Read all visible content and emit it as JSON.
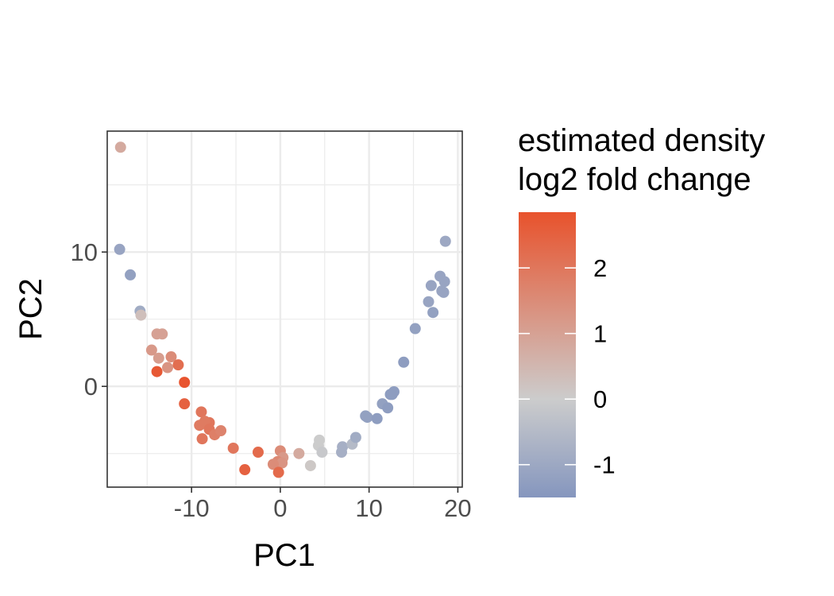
{
  "chart_data": {
    "type": "scatter",
    "xlabel": "PC1",
    "ylabel": "PC2",
    "xlim": [
      -19.5,
      20.5
    ],
    "ylim": [
      -7.5,
      19
    ],
    "xticks": [
      -10,
      0,
      10,
      20
    ],
    "xtick_labels": [
      "-10",
      "0",
      "10",
      "20"
    ],
    "yticks": [
      0,
      10
    ],
    "ytick_labels": [
      "0",
      "10"
    ],
    "grid": true,
    "legend": {
      "title_lines": [
        "estimated density",
        "log2 fold change"
      ],
      "type": "colorbar",
      "placement": "right",
      "range": [
        -1.5,
        2.85
      ],
      "ticks": [
        -1,
        0,
        1,
        2
      ],
      "tick_labels": [
        "-1",
        "0",
        "1",
        "2"
      ],
      "colors": {
        "low": "#8596be",
        "mid": "#cccccc",
        "high": "#e8522c"
      }
    },
    "points": [
      {
        "x": -18.0,
        "y": 17.8,
        "value": 0.8
      },
      {
        "x": -18.1,
        "y": 10.2,
        "value": -1.1
      },
      {
        "x": -16.9,
        "y": 8.3,
        "value": -1.2
      },
      {
        "x": -15.8,
        "y": 5.6,
        "value": -0.9
      },
      {
        "x": -15.7,
        "y": 5.3,
        "value": 0.3
      },
      {
        "x": -13.9,
        "y": 3.9,
        "value": 1.0
      },
      {
        "x": -13.3,
        "y": 3.9,
        "value": 1.0
      },
      {
        "x": -14.5,
        "y": 2.7,
        "value": 1.2
      },
      {
        "x": -13.7,
        "y": 2.1,
        "value": 1.1
      },
      {
        "x": -12.3,
        "y": 2.2,
        "value": 1.5
      },
      {
        "x": -12.7,
        "y": 1.4,
        "value": 1.3
      },
      {
        "x": -11.5,
        "y": 1.6,
        "value": 2.2
      },
      {
        "x": -13.9,
        "y": 1.1,
        "value": 2.7
      },
      {
        "x": -10.8,
        "y": 0.3,
        "value": 2.8
      },
      {
        "x": -10.8,
        "y": -1.3,
        "value": 2.5
      },
      {
        "x": -8.9,
        "y": -1.9,
        "value": 2.0
      },
      {
        "x": -8.0,
        "y": -2.7,
        "value": 2.0
      },
      {
        "x": -9.1,
        "y": -2.9,
        "value": 1.9
      },
      {
        "x": -8.5,
        "y": -2.6,
        "value": 1.9
      },
      {
        "x": -8.0,
        "y": -3.2,
        "value": 2.0
      },
      {
        "x": -7.4,
        "y": -3.6,
        "value": 1.8
      },
      {
        "x": -6.7,
        "y": -3.3,
        "value": 1.7
      },
      {
        "x": -8.8,
        "y": -3.9,
        "value": 2.0
      },
      {
        "x": -5.3,
        "y": -4.6,
        "value": 2.0
      },
      {
        "x": -4.0,
        "y": -6.2,
        "value": 2.5
      },
      {
        "x": -2.5,
        "y": -4.9,
        "value": 2.3
      },
      {
        "x": 0.0,
        "y": -4.8,
        "value": 1.5
      },
      {
        "x": 0.3,
        "y": -5.3,
        "value": 1.2
      },
      {
        "x": -0.3,
        "y": -5.6,
        "value": 1.6
      },
      {
        "x": 0.2,
        "y": -5.7,
        "value": 1.3
      },
      {
        "x": -0.8,
        "y": -5.8,
        "value": 1.5
      },
      {
        "x": -0.2,
        "y": -6.4,
        "value": 2.3
      },
      {
        "x": 2.1,
        "y": -5.0,
        "value": 0.8
      },
      {
        "x": 3.4,
        "y": -5.9,
        "value": 0.1
      },
      {
        "x": 4.4,
        "y": -4.0,
        "value": 0.0
      },
      {
        "x": 4.3,
        "y": -4.4,
        "value": 0.0
      },
      {
        "x": 4.7,
        "y": -4.9,
        "value": -0.1
      },
      {
        "x": 7.0,
        "y": -4.5,
        "value": -0.8
      },
      {
        "x": 6.9,
        "y": -4.9,
        "value": -0.8
      },
      {
        "x": 8.1,
        "y": -4.3,
        "value": -0.5
      },
      {
        "x": 8.5,
        "y": -3.8,
        "value": -0.9
      },
      {
        "x": 9.6,
        "y": -2.2,
        "value": -1.2
      },
      {
        "x": 9.8,
        "y": -2.3,
        "value": -1.2
      },
      {
        "x": 10.9,
        "y": -2.4,
        "value": -1.3
      },
      {
        "x": 11.5,
        "y": -1.3,
        "value": -1.2
      },
      {
        "x": 12.1,
        "y": -1.6,
        "value": -1.3
      },
      {
        "x": 12.6,
        "y": -0.6,
        "value": -1.3
      },
      {
        "x": 12.8,
        "y": -0.4,
        "value": -1.3
      },
      {
        "x": 12.4,
        "y": -0.6,
        "value": -1.3
      },
      {
        "x": 13.9,
        "y": 1.8,
        "value": -1.3
      },
      {
        "x": 15.2,
        "y": 4.3,
        "value": -1.2
      },
      {
        "x": 16.7,
        "y": 6.3,
        "value": -1.1
      },
      {
        "x": 17.2,
        "y": 5.5,
        "value": -1.2
      },
      {
        "x": 17.0,
        "y": 7.5,
        "value": -1.1
      },
      {
        "x": 18.0,
        "y": 8.2,
        "value": -1.1
      },
      {
        "x": 18.4,
        "y": 7.0,
        "value": -1.1
      },
      {
        "x": 18.2,
        "y": 7.1,
        "value": -1.1
      },
      {
        "x": 18.5,
        "y": 7.8,
        "value": -1.1
      },
      {
        "x": 18.6,
        "y": 10.8,
        "value": -1.0
      }
    ]
  }
}
